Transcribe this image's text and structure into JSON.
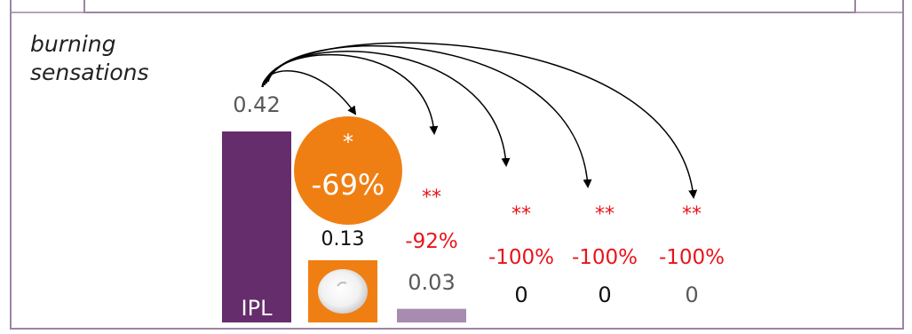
{
  "chart_data": {
    "type": "bar",
    "ylabel": "burning sensations",
    "categories": [
      "IPL",
      "",
      "",
      "",
      "",
      ""
    ],
    "values": [
      0.42,
      0.13,
      0.03,
      0,
      0,
      0
    ],
    "value_labels": [
      "0.42",
      "0.13",
      "0.03",
      "0",
      "0",
      "0"
    ],
    "changes": [
      "",
      "-69%",
      "-92%",
      "-100%",
      "-100%",
      "-100%"
    ],
    "significance": [
      "",
      "*",
      "**",
      "**",
      "**",
      "**"
    ],
    "ylim": [
      0,
      0.42
    ],
    "grid": false,
    "legend": "none",
    "comparisons_from": "IPL",
    "colors": {
      "ipl_bar": "#662d6c",
      "light_bar": "#a78bb1",
      "highlight_circle": "#f07f13",
      "significance_text": "#e8141b",
      "value_text": "#595959",
      "frame": "#9b85a4"
    },
    "icons": [
      "cream-product-icon"
    ]
  }
}
